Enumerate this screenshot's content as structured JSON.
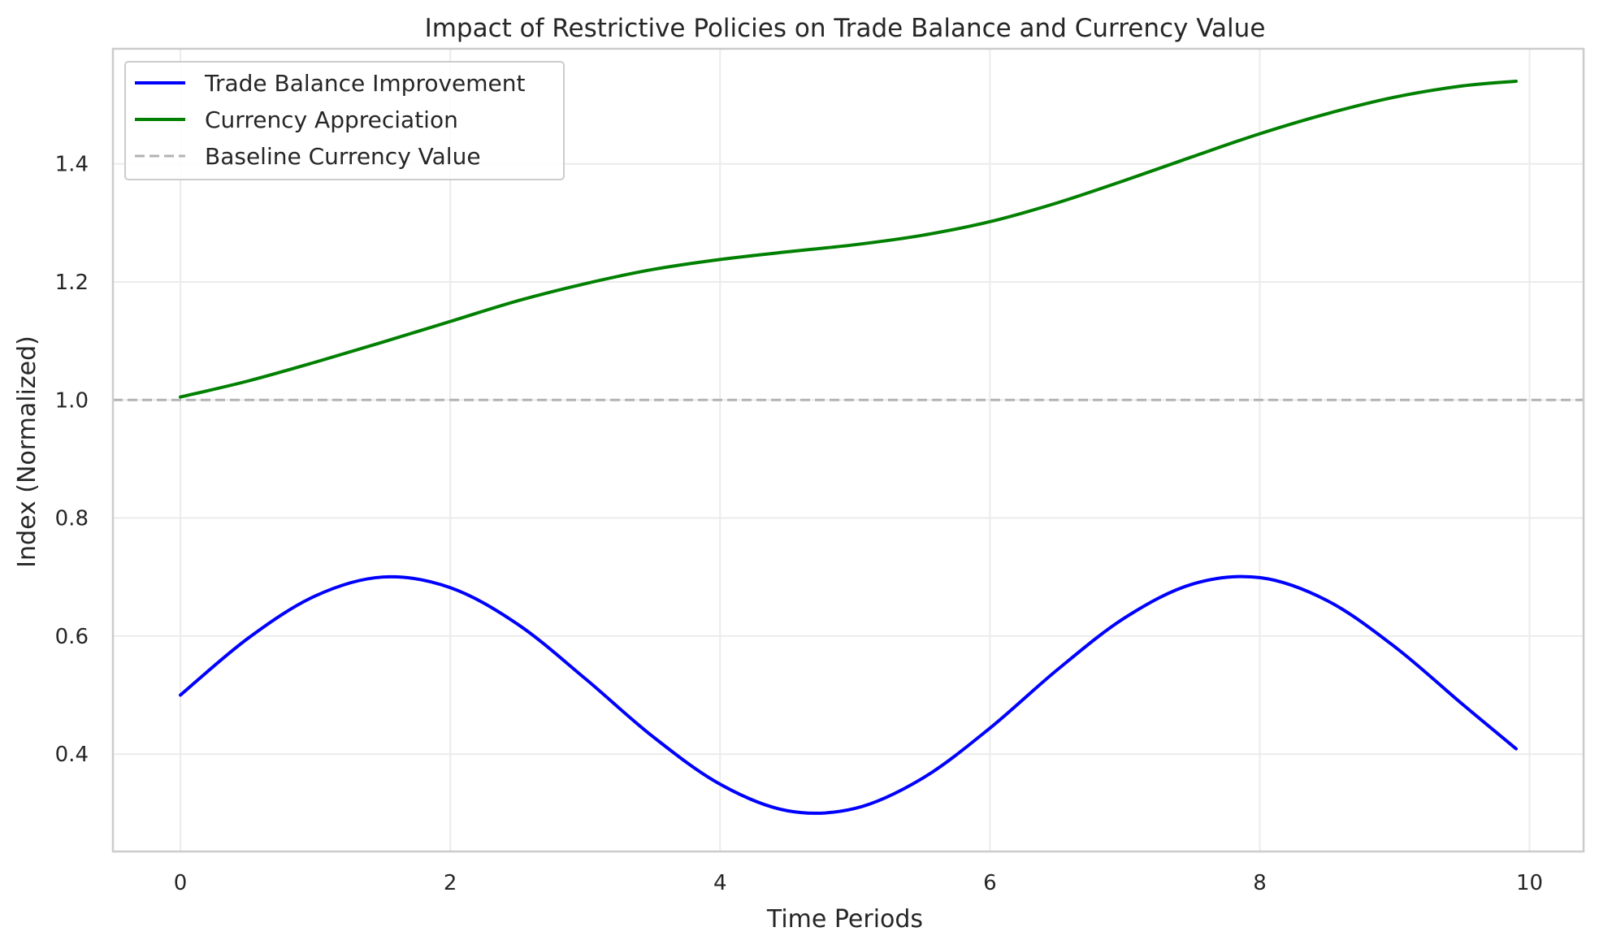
{
  "chart_data": {
    "type": "line",
    "title": "Impact of Restrictive Policies on Trade Balance and Currency Value",
    "xlabel": "Time Periods",
    "ylabel": "Index (Normalized)",
    "xlim": [
      -0.5,
      10.4
    ],
    "ylim": [
      0.235,
      1.595
    ],
    "x_ticks": [
      0,
      2,
      4,
      6,
      8,
      10
    ],
    "x_tick_labels": [
      "0",
      "2",
      "4",
      "6",
      "8",
      "10"
    ],
    "y_ticks": [
      0.4,
      0.6,
      0.8,
      1.0,
      1.2,
      1.4
    ],
    "y_tick_labels": [
      "0.4",
      "0.6",
      "0.8",
      "1.0",
      "1.2",
      "1.4"
    ],
    "grid": true,
    "legend_position": "top-left",
    "x": [
      0,
      0.5,
      1,
      1.5,
      2,
      2.5,
      3,
      3.5,
      4,
      4.5,
      5,
      5.5,
      6,
      6.5,
      7,
      7.5,
      8,
      8.5,
      9,
      9.5,
      9.9
    ],
    "series": [
      {
        "name": "Trade Balance Improvement",
        "color": "#0000ff",
        "style": "solid",
        "values": [
          0.5,
          0.596,
          0.668,
          0.7,
          0.682,
          0.62,
          0.528,
          0.43,
          0.349,
          0.304,
          0.308,
          0.359,
          0.444,
          0.543,
          0.631,
          0.688,
          0.699,
          0.66,
          0.582,
          0.485,
          0.409
        ]
      },
      {
        "name": "Currency Appreciation",
        "color": "#008000",
        "style": "solid",
        "values": [
          1.005,
          1.032,
          1.064,
          1.098,
          1.133,
          1.168,
          1.197,
          1.221,
          1.238,
          1.251,
          1.263,
          1.279,
          1.302,
          1.334,
          1.372,
          1.412,
          1.451,
          1.485,
          1.513,
          1.532,
          1.54
        ]
      },
      {
        "name": "Baseline Currency Value",
        "color": "#b3b3b3",
        "style": "dashed",
        "values": [
          1.0,
          1.0,
          1.0,
          1.0,
          1.0,
          1.0,
          1.0,
          1.0,
          1.0,
          1.0,
          1.0,
          1.0,
          1.0,
          1.0,
          1.0,
          1.0,
          1.0,
          1.0,
          1.0,
          1.0,
          1.0
        ]
      }
    ]
  },
  "colors": {
    "grid": "#ebebeb",
    "frame": "#cccccc",
    "text": "#262626",
    "background": "#ffffff"
  }
}
